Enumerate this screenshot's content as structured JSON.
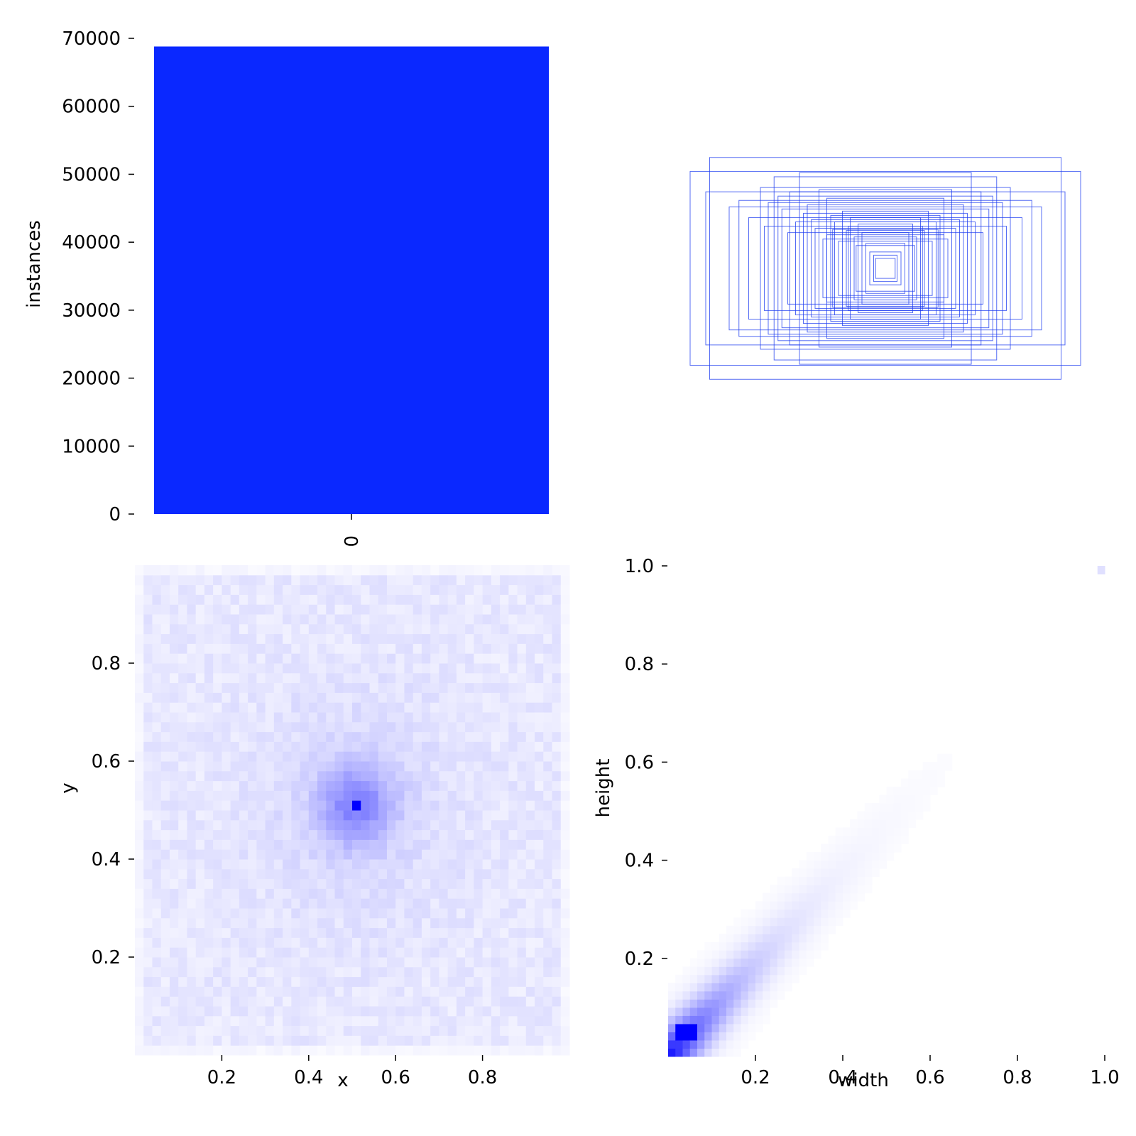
{
  "colors": {
    "bar": "#0a28ff",
    "box_stroke": "#1e3cf0",
    "tick": "#000000"
  },
  "chart_data": [
    {
      "type": "bar",
      "categories": [
        "0"
      ],
      "values": [
        68800
      ],
      "xlabel": "",
      "ylabel": "instances",
      "ylim": [
        0,
        70000
      ],
      "yticks": [
        0,
        10000,
        20000,
        30000,
        40000,
        50000,
        60000,
        70000
      ]
    },
    {
      "type": "scatter",
      "description_type": "bounding-box-overlay",
      "boxes_wh": [
        [
          1.0,
          0.87
        ],
        [
          0.9,
          1.0
        ],
        [
          0.44,
          0.86
        ],
        [
          0.57,
          0.82
        ],
        [
          0.92,
          0.68
        ],
        [
          0.8,
          0.54
        ],
        [
          0.64,
          0.72
        ],
        [
          0.49,
          0.68
        ],
        [
          0.3,
          0.62
        ],
        [
          0.6,
          0.58
        ],
        [
          0.34,
          0.7
        ],
        [
          0.14,
          0.38
        ],
        [
          0.7,
          0.44
        ],
        [
          0.53,
          0.52
        ],
        [
          0.22,
          0.5
        ],
        [
          0.42,
          0.48
        ],
        [
          0.18,
          0.44
        ],
        [
          0.26,
          0.4
        ],
        [
          0.12,
          0.3
        ],
        [
          0.36,
          0.34
        ],
        [
          0.2,
          0.32
        ],
        [
          0.16,
          0.26
        ],
        [
          0.24,
          0.22
        ],
        [
          0.1,
          0.2
        ],
        [
          0.3,
          0.28
        ],
        [
          0.08,
          0.12
        ],
        [
          0.06,
          0.09
        ],
        [
          0.05,
          0.06
        ],
        [
          0.62,
          0.36
        ],
        [
          0.46,
          0.4
        ],
        [
          0.4,
          0.56
        ],
        [
          0.28,
          0.46
        ],
        [
          0.5,
          0.3
        ],
        [
          0.32,
          0.24
        ],
        [
          0.19,
          0.36
        ],
        [
          0.15,
          0.18
        ],
        [
          0.75,
          0.6
        ],
        [
          0.55,
          0.64
        ],
        [
          0.38,
          0.42
        ],
        [
          0.27,
          0.33
        ]
      ]
    },
    {
      "type": "heatmap",
      "xlabel": "x",
      "ylabel": "y",
      "xlim": [
        0,
        1
      ],
      "ylim": [
        0,
        1
      ],
      "xticks": [
        0.2,
        0.4,
        0.6,
        0.8
      ],
      "yticks": [
        0.2,
        0.4,
        0.6,
        0.8
      ],
      "peak": [
        0.51,
        0.51
      ]
    },
    {
      "type": "heatmap",
      "xlabel": "width",
      "ylabel": "height",
      "xlim": [
        0,
        1
      ],
      "ylim": [
        0,
        1
      ],
      "xticks": [
        0.2,
        0.4,
        0.6,
        0.8,
        1.0
      ],
      "yticks": [
        0.2,
        0.4,
        0.6,
        0.8,
        1.0
      ],
      "peak": [
        0.04,
        0.05
      ]
    }
  ]
}
